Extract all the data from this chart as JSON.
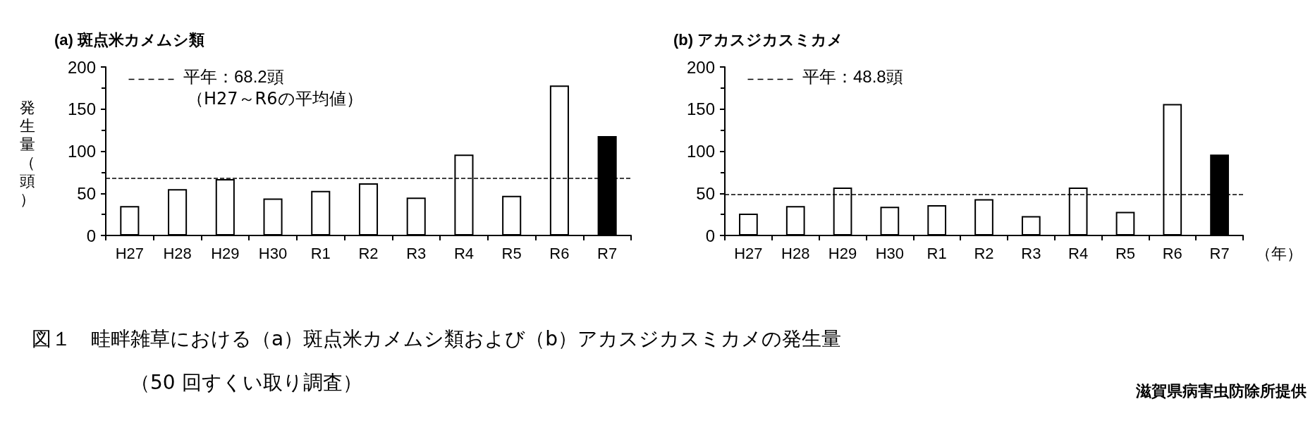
{
  "chart_data": [
    {
      "type": "bar",
      "title": "(a) 斑点米カメムシ類",
      "ylabel": "発生量（頭）",
      "categories": [
        "H27",
        "H28",
        "H29",
        "H30",
        "R1",
        "R2",
        "R3",
        "R4",
        "R5",
        "R6",
        "R7"
      ],
      "values": [
        35,
        55,
        67,
        44,
        53,
        62,
        45,
        96,
        47,
        178,
        118
      ],
      "colors": [
        "#ffffff",
        "#ffffff",
        "#ffffff",
        "#ffffff",
        "#ffffff",
        "#ffffff",
        "#ffffff",
        "#ffffff",
        "#ffffff",
        "#ffffff",
        "#000000"
      ],
      "ylim": [
        0,
        200
      ],
      "yticks": [
        0,
        50,
        100,
        150,
        200
      ],
      "grid": false,
      "ref_lines": [
        {
          "axis": "y",
          "value": 68.2,
          "label": "平年：68.2頭",
          "color": "#000000",
          "line_style": "dashed"
        }
      ],
      "annotations": [
        "（H27～R6の平均値）"
      ]
    },
    {
      "type": "bar",
      "title": "(b) アカスジカスミカメ",
      "xlabel": "（年）",
      "categories": [
        "H27",
        "H28",
        "H29",
        "H30",
        "R1",
        "R2",
        "R3",
        "R4",
        "R5",
        "R6",
        "R7"
      ],
      "values": [
        26,
        35,
        57,
        34,
        36,
        43,
        23,
        57,
        28,
        156,
        96
      ],
      "colors": [
        "#ffffff",
        "#ffffff",
        "#ffffff",
        "#ffffff",
        "#ffffff",
        "#ffffff",
        "#ffffff",
        "#ffffff",
        "#ffffff",
        "#ffffff",
        "#000000"
      ],
      "ylim": [
        0,
        200
      ],
      "yticks": [
        0,
        50,
        100,
        150,
        200
      ],
      "grid": false,
      "ref_lines": [
        {
          "axis": "y",
          "value": 48.8,
          "label": "平年：48.8頭",
          "color": "#000000",
          "line_style": "dashed"
        }
      ],
      "annotations": [
        "図１　畦畔雑草における（a）斑点米カメムシ類および（b）アカスジカスミカメの発生量",
        "（50 回すくい取り調査）",
        "滋賀県病害虫防除所提供"
      ]
    }
  ]
}
